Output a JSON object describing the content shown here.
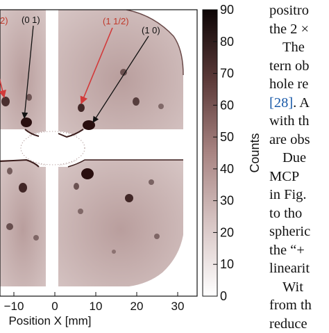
{
  "figure": {
    "xlabel": "Position X [mm]",
    "colorbar_label": "Counts",
    "colorbar_ticks": [
      "0",
      "10",
      "20",
      "30",
      "40",
      "50",
      "60",
      "70",
      "80",
      "90"
    ],
    "x_ticks": [
      "−10",
      "0",
      "10",
      "20",
      "30"
    ],
    "annotations": [
      {
        "text": "2)",
        "color": "#c0392b"
      },
      {
        "text": "(0 1)",
        "color": "#111111"
      },
      {
        "text": "(1 1/2)",
        "color": "#c0392b"
      },
      {
        "text": "(1 0)",
        "color": "#111111"
      }
    ],
    "colors": {
      "spot_dark": "#2a0f0f",
      "background_tint": "#c9b1b0",
      "red_arrow": "#d23a3a"
    }
  },
  "chart_data": {
    "type": "heatmap",
    "title": "",
    "xlabel": "Position X [mm]",
    "ylabel": "",
    "colorbar_label": "Counts",
    "colorbar_range": [
      0,
      90
    ],
    "x_ticks": [
      -10,
      0,
      10,
      20,
      30
    ],
    "xlim": [
      -13,
      38
    ]
  },
  "text_column": {
    "lines": [
      {
        "text": "positro",
        "indent": false
      },
      {
        "text": "the 2 ×",
        "indent": false
      },
      {
        "text": "The",
        "indent": true
      },
      {
        "text": "tern ob",
        "indent": false
      },
      {
        "text": "hole re",
        "indent": false
      },
      {
        "text": "[28]. A",
        "indent": false,
        "cite": "[28]",
        "rest": ". A"
      },
      {
        "text": "with th",
        "indent": false
      },
      {
        "text": "are obs",
        "indent": false
      },
      {
        "text": "Due",
        "indent": true
      },
      {
        "text": "MCP",
        "indent": false
      },
      {
        "text": "in Fig.",
        "indent": false
      },
      {
        "text": "to tho",
        "indent": false
      },
      {
        "text": "spheric",
        "indent": false
      },
      {
        "text": "the “+",
        "indent": false
      },
      {
        "text": "linearit",
        "indent": false
      },
      {
        "text": "Wit",
        "indent": true
      },
      {
        "text": "from th",
        "indent": false
      },
      {
        "text": "reduce",
        "indent": false
      }
    ]
  }
}
